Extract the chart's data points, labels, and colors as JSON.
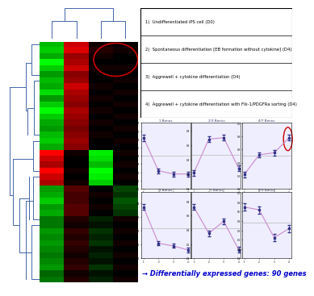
{
  "legend_items": [
    "1)  Undifferentiated iPS cell (D0)",
    "2)  Spontaneous differentiation [EB formation without cytokine] (D4)",
    "3)  Aggrewell + cytokine differentiation (D4)",
    "4)  Aggrewell + cytokine differentiation with Flk-1/PDGFRa sorting (D4)"
  ],
  "bottom_text": "→ Differentially expressed genes: 90 genes",
  "bottom_text_color": "#0000cc",
  "heatmap_col1": [
    "#00bb00",
    "#00cc00",
    "#00aa00",
    "#00ff00",
    "#00cc00",
    "#009900",
    "#00bb00",
    "#00aa00",
    "#00dd00",
    "#009900",
    "#00cc00",
    "#00ff00",
    "#00cc00",
    "#00aa00",
    "#009900",
    "#00bb00",
    "#00cc00",
    "#00aa00",
    "#ff0000",
    "#cc0000",
    "#aa0000",
    "#ff0000",
    "#cc0000",
    "#aa0000",
    "#009900",
    "#00aa00",
    "#00cc00",
    "#009900",
    "#00aa00",
    "#007700",
    "#007700",
    "#009900",
    "#008800",
    "#009900",
    "#008800",
    "#007700",
    "#008800",
    "#009900",
    "#006600",
    "#007700"
  ],
  "heatmap_col2": [
    "#cc0000",
    "#dd0000",
    "#990000",
    "#aa0000",
    "#cc0000",
    "#880000",
    "#990000",
    "#cc0000",
    "#aa0000",
    "#990000",
    "#880000",
    "#aa0000",
    "#990000",
    "#880000",
    "#770000",
    "#880000",
    "#990000",
    "#880000",
    "#110000",
    "#000000",
    "#000000",
    "#110000",
    "#000000",
    "#110000",
    "#550000",
    "#440000",
    "#440000",
    "#550000",
    "#550000",
    "#220000",
    "#110000",
    "#330000",
    "#220000",
    "#330000",
    "#220000",
    "#110000",
    "#220000",
    "#330000",
    "#110000",
    "#220000"
  ],
  "heatmap_col3": [
    "#110000",
    "#220000",
    "#110000",
    "#000000",
    "#110000",
    "#000000",
    "#000000",
    "#110000",
    "#000000",
    "#110000",
    "#000000",
    "#110000",
    "#000000",
    "#110000",
    "#000000",
    "#110000",
    "#000000",
    "#000000",
    "#00ee00",
    "#00dd00",
    "#00bb00",
    "#00ff00",
    "#00ee00",
    "#00cc00",
    "#000000",
    "#110000",
    "#000000",
    "#110000",
    "#000000",
    "#002200",
    "#001100",
    "#003300",
    "#002200",
    "#003300",
    "#001100",
    "#002200",
    "#001100",
    "#003300",
    "#001100",
    "#002200"
  ],
  "heatmap_col4": [
    "#000000",
    "#110000",
    "#000000",
    "#000000",
    "#110000",
    "#000000",
    "#110000",
    "#000000",
    "#110000",
    "#000000",
    "#110000",
    "#000000",
    "#110000",
    "#000000",
    "#110000",
    "#000000",
    "#110000",
    "#000000",
    "#110000",
    "#000000",
    "#110000",
    "#000000",
    "#110000",
    "#000000",
    "#004400",
    "#003300",
    "#005500",
    "#004400",
    "#003300",
    "#110000",
    "#000000",
    "#110000",
    "#000000",
    "#110000",
    "#000000",
    "#110000",
    "#000000",
    "#110000",
    "#000000",
    "#110000"
  ],
  "n_rows": 40,
  "dendrogram_color": "#4466aa",
  "circle_color": "#cc0000",
  "line_color": "#cc88cc",
  "point_color": "#333388",
  "plot_bg": "#eeeeff",
  "line_plots_top": [
    {
      "title": "1 Bonus",
      "y": [
        0.62,
        0.22,
        0.18,
        0.18
      ],
      "yerr": [
        0.04,
        0.03,
        0.03,
        0.03
      ]
    },
    {
      "title": "2/3 Bonus",
      "y": [
        0.22,
        0.68,
        0.7,
        0.28
      ],
      "yerr": [
        0.04,
        0.04,
        0.04,
        0.04
      ]
    },
    {
      "title": "4/7 Bonus",
      "y": [
        0.22,
        0.52,
        0.55,
        0.78
      ],
      "yerr": [
        0.04,
        0.04,
        0.04,
        0.04
      ]
    }
  ],
  "line_plots_bottom": [
    {
      "title": "4 Bonus",
      "y": [
        0.75,
        0.22,
        0.18,
        0.12
      ],
      "yerr": [
        0.04,
        0.03,
        0.03,
        0.03
      ]
    },
    {
      "title": "5 Bonus",
      "y": [
        0.72,
        0.35,
        0.52,
        0.12
      ],
      "yerr": [
        0.04,
        0.04,
        0.04,
        0.04
      ]
    },
    {
      "title": "8/9 Bonus",
      "y": [
        0.55,
        0.52,
        0.22,
        0.32
      ],
      "yerr": [
        0.04,
        0.04,
        0.04,
        0.04
      ]
    }
  ],
  "background_color": "#ffffff"
}
